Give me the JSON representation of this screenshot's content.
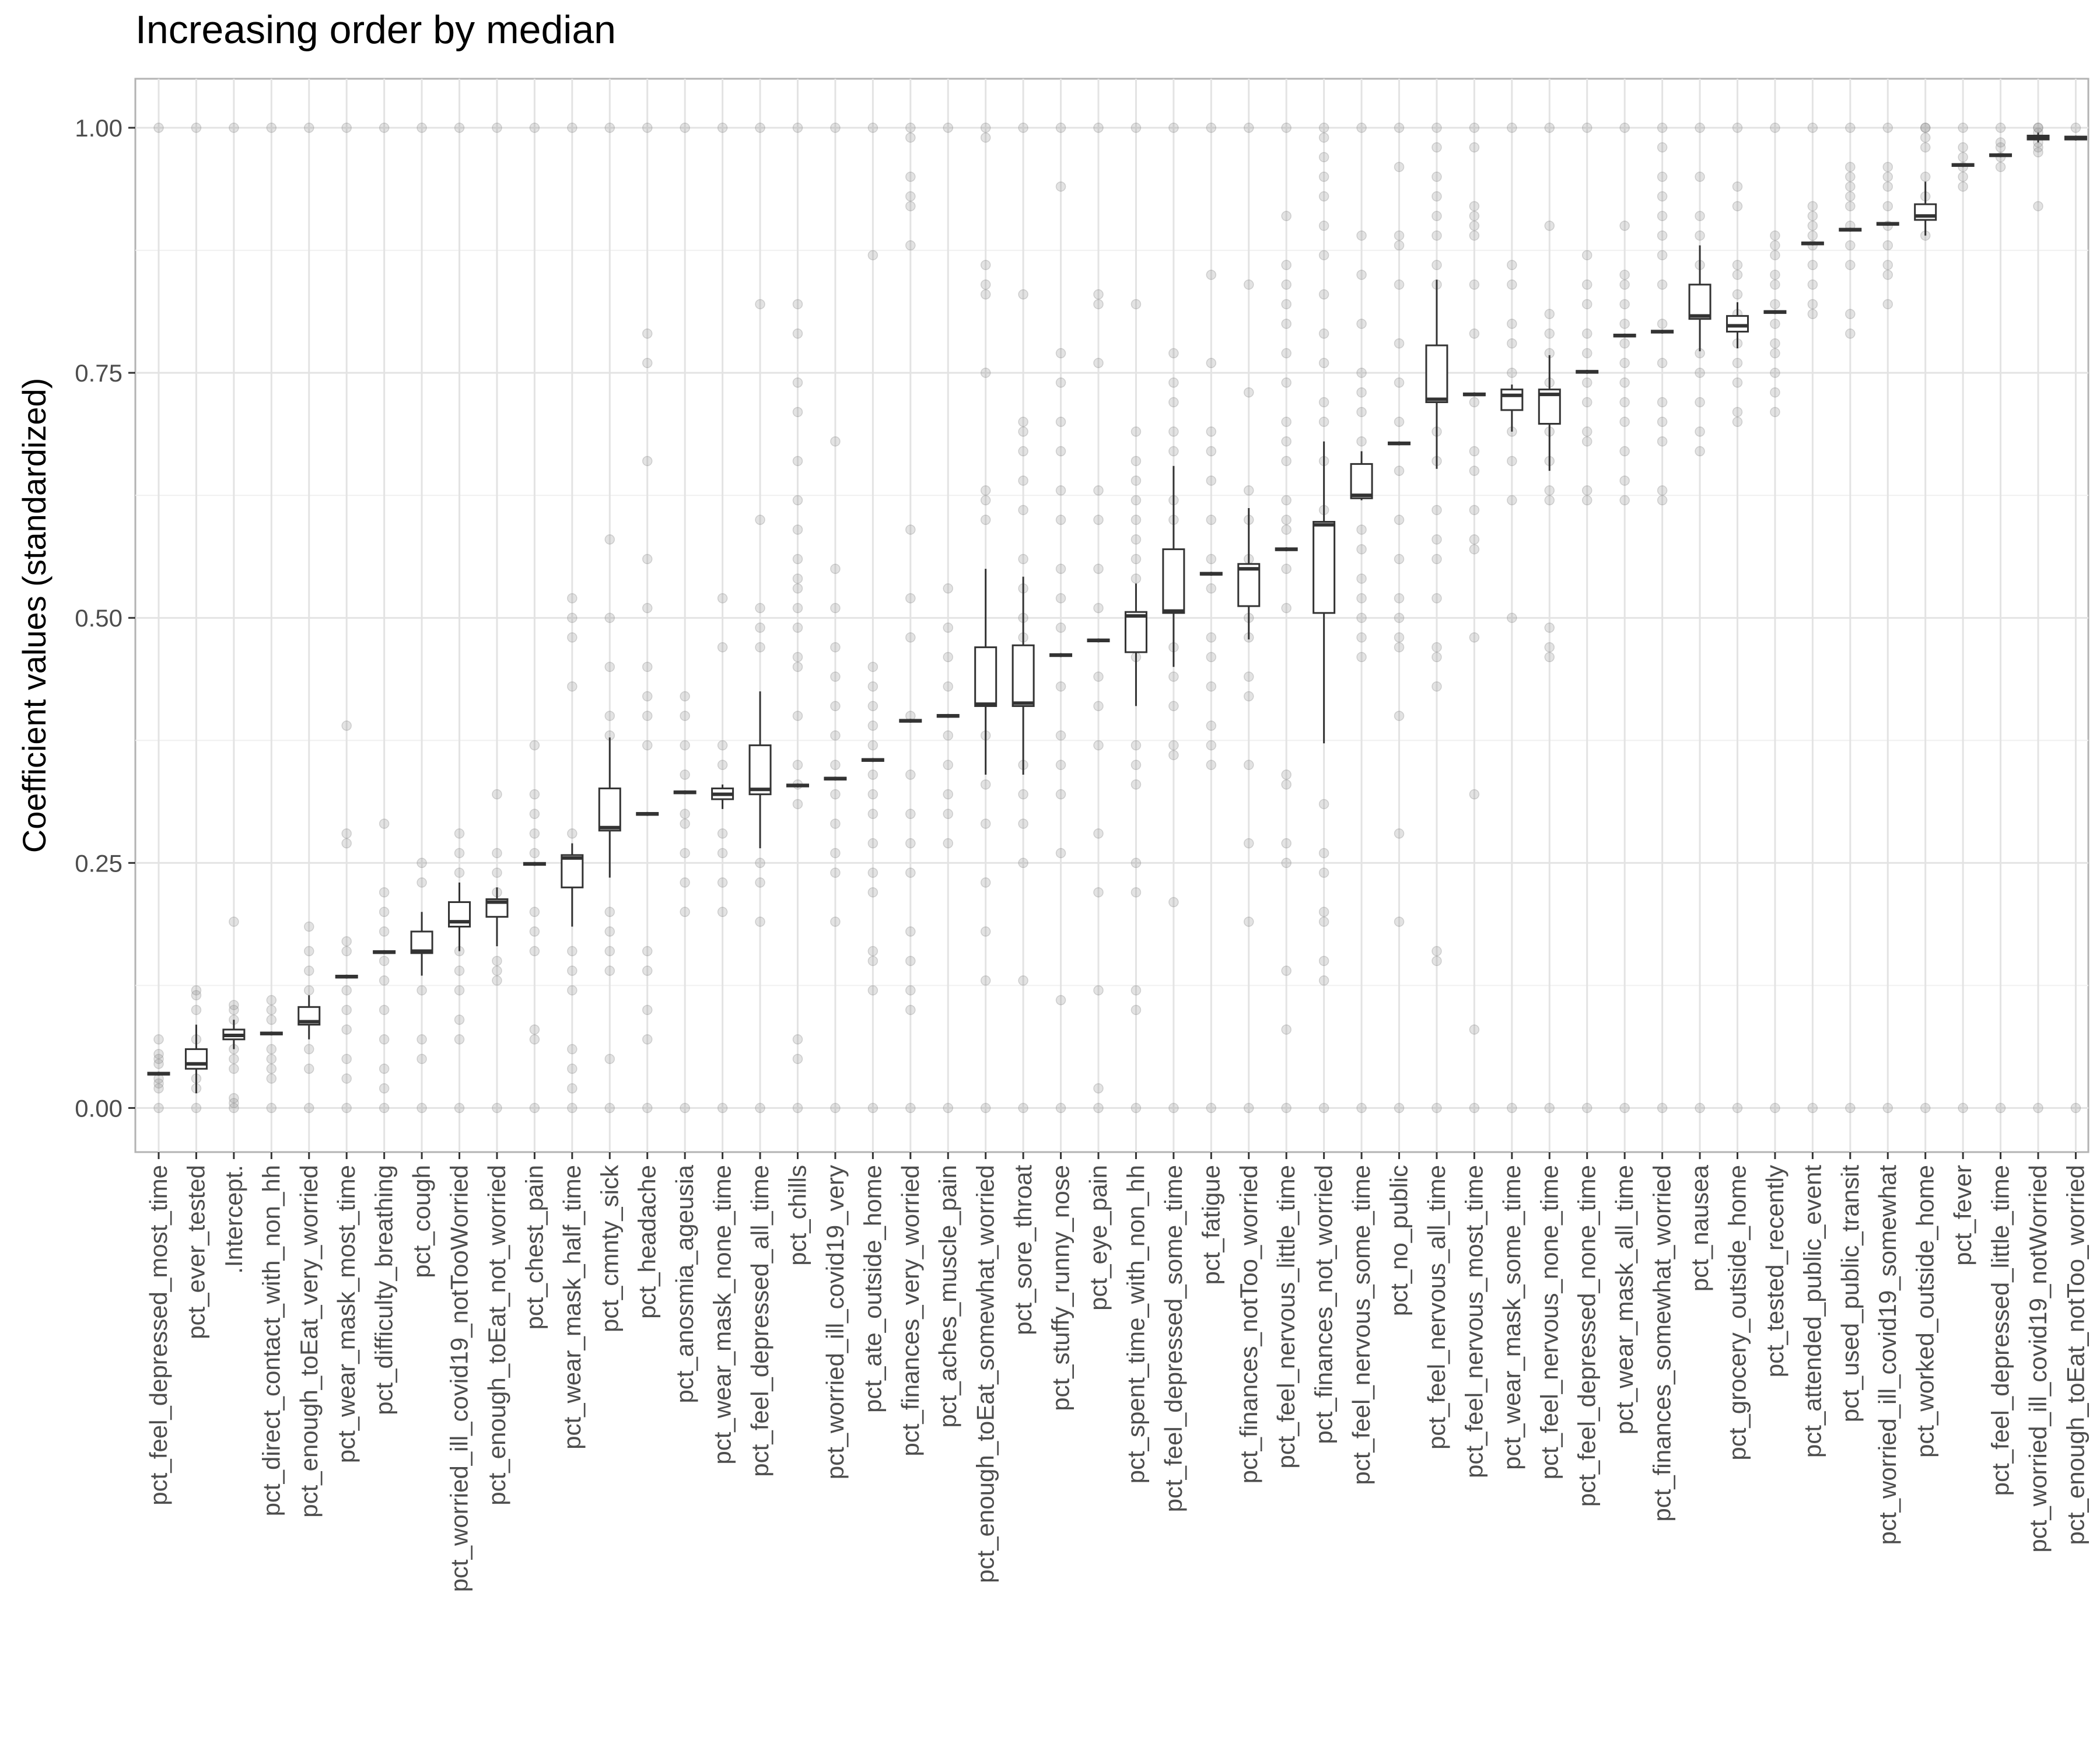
{
  "chart_data": {
    "type": "box",
    "title": "Increasing order by median",
    "xlabel": "",
    "ylabel": "Coefficient values (standardized)",
    "ylim": [
      -0.045,
      1.05
    ],
    "yticks": [
      0.0,
      0.25,
      0.5,
      0.75,
      1.0
    ],
    "ytick_labels": [
      "0.00",
      "0.25",
      "0.50",
      "0.75",
      "1.00"
    ],
    "grid": true,
    "categories": [
      "pct_feel_depressed_most_time",
      "pct_ever_tested",
      ".Intercept.",
      "pct_direct_contact_with_non_hh",
      "pct_enough_toEat_very_worried",
      "pct_wear_mask_most_time",
      "pct_difficulty_breathing",
      "pct_cough",
      "pct_worried_ill_covid19_notTooWorried",
      "pct_enough_toEat_not_worried",
      "pct_chest_pain",
      "pct_wear_mask_half_time",
      "pct_cmnty_sick",
      "pct_headache",
      "pct_anosmia_ageusia",
      "pct_wear_mask_none_time",
      "pct_feel_depressed_all_time",
      "pct_chills",
      "pct_worried_ill_covid19_very",
      "pct_ate_outside_home",
      "pct_finances_very_worried",
      "pct_aches_muscle_pain",
      "pct_enough_toEat_somewhat_worried",
      "pct_sore_throat",
      "pct_stuffy_runny_nose",
      "pct_eye_pain",
      "pct_spent_time_with_non_hh",
      "pct_feel_depressed_some_time",
      "pct_fatigue",
      "pct_finances_notToo_worried",
      "pct_feel_nervous_little_time",
      "pct_finances_not_worried",
      "pct_feel_nervous_some_time",
      "pct_no_public",
      "pct_feel_nervous_all_time",
      "pct_feel_nervous_most_time",
      "pct_wear_mask_some_time",
      "pct_feel_nervous_none_time",
      "pct_feel_depressed_none_time",
      "pct_wear_mask_all_time",
      "pct_finances_somewhat_worried",
      "pct_nausea",
      "pct_grocery_outside_home",
      "pct_tested_recently",
      "pct_attended_public_event",
      "pct_used_public_transit",
      "pct_worried_ill_covid19_somewhat",
      "pct_worked_outside_home",
      "pct_fever",
      "pct_feel_depressed_little_time",
      "pct_worried_ill_covid19_notWorried",
      "pct_enough_toEat_notToo_worried"
    ],
    "boxes": [
      {
        "min": 0.033,
        "q1": 0.034,
        "median": 0.035,
        "q3": 0.036,
        "max": 0.037
      },
      {
        "min": 0.015,
        "q1": 0.04,
        "median": 0.045,
        "q3": 0.06,
        "max": 0.085
      },
      {
        "min": 0.06,
        "q1": 0.07,
        "median": 0.074,
        "q3": 0.08,
        "max": 0.09
      },
      {
        "min": 0.074,
        "q1": 0.075,
        "median": 0.076,
        "q3": 0.077,
        "max": 0.078
      },
      {
        "min": 0.07,
        "q1": 0.085,
        "median": 0.088,
        "q3": 0.103,
        "max": 0.115
      },
      {
        "min": 0.132,
        "q1": 0.133,
        "median": 0.134,
        "q3": 0.135,
        "max": 0.136
      },
      {
        "min": 0.157,
        "q1": 0.158,
        "median": 0.159,
        "q3": 0.16,
        "max": 0.161
      },
      {
        "min": 0.135,
        "q1": 0.158,
        "median": 0.16,
        "q3": 0.18,
        "max": 0.2
      },
      {
        "min": 0.16,
        "q1": 0.185,
        "median": 0.19,
        "q3": 0.21,
        "max": 0.23
      },
      {
        "min": 0.165,
        "q1": 0.195,
        "median": 0.21,
        "q3": 0.213,
        "max": 0.225
      },
      {
        "min": 0.247,
        "q1": 0.248,
        "median": 0.249,
        "q3": 0.25,
        "max": 0.251
      },
      {
        "min": 0.185,
        "q1": 0.225,
        "median": 0.255,
        "q3": 0.258,
        "max": 0.27
      },
      {
        "min": 0.235,
        "q1": 0.283,
        "median": 0.286,
        "q3": 0.326,
        "max": 0.378
      },
      {
        "min": 0.298,
        "q1": 0.299,
        "median": 0.3,
        "q3": 0.301,
        "max": 0.302
      },
      {
        "min": 0.32,
        "q1": 0.321,
        "median": 0.322,
        "q3": 0.323,
        "max": 0.324
      },
      {
        "min": 0.305,
        "q1": 0.315,
        "median": 0.32,
        "q3": 0.326,
        "max": 0.33
      },
      {
        "min": 0.265,
        "q1": 0.32,
        "median": 0.325,
        "q3": 0.37,
        "max": 0.425
      },
      {
        "min": 0.327,
        "q1": 0.328,
        "median": 0.329,
        "q3": 0.33,
        "max": 0.331
      },
      {
        "min": 0.334,
        "q1": 0.335,
        "median": 0.336,
        "q3": 0.337,
        "max": 0.338
      },
      {
        "min": 0.353,
        "q1": 0.354,
        "median": 0.355,
        "q3": 0.356,
        "max": 0.357
      },
      {
        "min": 0.393,
        "q1": 0.394,
        "median": 0.395,
        "q3": 0.396,
        "max": 0.397
      },
      {
        "min": 0.398,
        "q1": 0.399,
        "median": 0.4,
        "q3": 0.401,
        "max": 0.402
      },
      {
        "min": 0.34,
        "q1": 0.41,
        "median": 0.412,
        "q3": 0.47,
        "max": 0.55
      },
      {
        "min": 0.34,
        "q1": 0.41,
        "median": 0.413,
        "q3": 0.472,
        "max": 0.542
      },
      {
        "min": 0.46,
        "q1": 0.461,
        "median": 0.462,
        "q3": 0.463,
        "max": 0.464
      },
      {
        "min": 0.475,
        "q1": 0.476,
        "median": 0.477,
        "q3": 0.478,
        "max": 0.479
      },
      {
        "min": 0.41,
        "q1": 0.465,
        "median": 0.502,
        "q3": 0.506,
        "max": 0.535
      },
      {
        "min": 0.45,
        "q1": 0.505,
        "median": 0.507,
        "q3": 0.57,
        "max": 0.655
      },
      {
        "min": 0.543,
        "q1": 0.544,
        "median": 0.545,
        "q3": 0.546,
        "max": 0.547
      },
      {
        "min": 0.478,
        "q1": 0.512,
        "median": 0.55,
        "q3": 0.555,
        "max": 0.612
      },
      {
        "min": 0.568,
        "q1": 0.569,
        "median": 0.57,
        "q3": 0.571,
        "max": 0.572
      },
      {
        "min": 0.372,
        "q1": 0.505,
        "median": 0.595,
        "q3": 0.598,
        "max": 0.68
      },
      {
        "min": 0.62,
        "q1": 0.622,
        "median": 0.625,
        "q3": 0.657,
        "max": 0.67
      },
      {
        "min": 0.676,
        "q1": 0.677,
        "median": 0.678,
        "q3": 0.679,
        "max": 0.68
      },
      {
        "min": 0.652,
        "q1": 0.72,
        "median": 0.723,
        "q3": 0.778,
        "max": 0.845
      },
      {
        "min": 0.726,
        "q1": 0.727,
        "median": 0.728,
        "q3": 0.729,
        "max": 0.73
      },
      {
        "min": 0.69,
        "q1": 0.712,
        "median": 0.727,
        "q3": 0.733,
        "max": 0.738
      },
      {
        "min": 0.65,
        "q1": 0.698,
        "median": 0.728,
        "q3": 0.733,
        "max": 0.768
      },
      {
        "min": 0.749,
        "q1": 0.75,
        "median": 0.751,
        "q3": 0.752,
        "max": 0.753
      },
      {
        "min": 0.786,
        "q1": 0.787,
        "median": 0.788,
        "q3": 0.789,
        "max": 0.79
      },
      {
        "min": 0.79,
        "q1": 0.791,
        "median": 0.792,
        "q3": 0.793,
        "max": 0.794
      },
      {
        "min": 0.772,
        "q1": 0.805,
        "median": 0.808,
        "q3": 0.84,
        "max": 0.88
      },
      {
        "min": 0.775,
        "q1": 0.792,
        "median": 0.798,
        "q3": 0.808,
        "max": 0.822
      },
      {
        "min": 0.81,
        "q1": 0.811,
        "median": 0.812,
        "q3": 0.813,
        "max": 0.814
      },
      {
        "min": 0.88,
        "q1": 0.881,
        "median": 0.882,
        "q3": 0.883,
        "max": 0.884
      },
      {
        "min": 0.894,
        "q1": 0.895,
        "median": 0.896,
        "q3": 0.897,
        "max": 0.898
      },
      {
        "min": 0.9,
        "q1": 0.901,
        "median": 0.902,
        "q3": 0.903,
        "max": 0.904
      },
      {
        "min": 0.89,
        "q1": 0.906,
        "median": 0.91,
        "q3": 0.922,
        "max": 0.945
      },
      {
        "min": 0.96,
        "q1": 0.961,
        "median": 0.962,
        "q3": 0.963,
        "max": 0.964
      },
      {
        "min": 0.97,
        "q1": 0.971,
        "median": 0.972,
        "q3": 0.973,
        "max": 0.974
      },
      {
        "min": 0.985,
        "q1": 0.988,
        "median": 0.99,
        "q3": 0.992,
        "max": 0.995
      },
      {
        "min": 0.987,
        "q1": 0.988,
        "median": 0.99,
        "q3": 0.991,
        "max": 0.992
      }
    ],
    "points_common": [
      0.0,
      1.0
    ],
    "points": [
      [
        0.02,
        0.025,
        0.03,
        0.045,
        0.05,
        0.055,
        0.07
      ],
      [
        0.02,
        0.03,
        0.07,
        0.1,
        0.115,
        0.12
      ],
      [
        0.005,
        0.01,
        0.04,
        0.05,
        0.06,
        0.09,
        0.1,
        0.105,
        0.19
      ],
      [
        0.03,
        0.04,
        0.05,
        0.06,
        0.09,
        0.1,
        0.11
      ],
      [
        0.04,
        0.06,
        0.12,
        0.14,
        0.16,
        0.185
      ],
      [
        0.03,
        0.05,
        0.08,
        0.1,
        0.12,
        0.16,
        0.17,
        0.27,
        0.28,
        0.39
      ],
      [
        0.02,
        0.04,
        0.07,
        0.1,
        0.13,
        0.15,
        0.18,
        0.2,
        0.22,
        0.29
      ],
      [
        0.05,
        0.07,
        0.12,
        0.23,
        0.25
      ],
      [
        0.07,
        0.09,
        0.12,
        0.14,
        0.16,
        0.24,
        0.26,
        0.28
      ],
      [
        0.13,
        0.14,
        0.15,
        0.22,
        0.24,
        0.26,
        0.32
      ],
      [
        0.07,
        0.08,
        0.16,
        0.18,
        0.2,
        0.26,
        0.28,
        0.3,
        0.32,
        0.37
      ],
      [
        0.02,
        0.04,
        0.06,
        0.12,
        0.14,
        0.16,
        0.28,
        0.43,
        0.48,
        0.5,
        0.52
      ],
      [
        0.05,
        0.14,
        0.16,
        0.18,
        0.2,
        0.38,
        0.4,
        0.45,
        0.5,
        0.58
      ],
      [
        0.07,
        0.1,
        0.14,
        0.16,
        0.37,
        0.4,
        0.42,
        0.45,
        0.51,
        0.56,
        0.66,
        0.76,
        0.79
      ],
      [
        0.2,
        0.23,
        0.26,
        0.29,
        0.3,
        0.34,
        0.37,
        0.4,
        0.42
      ],
      [
        0.2,
        0.23,
        0.26,
        0.28,
        0.32,
        0.35,
        0.37,
        0.47,
        0.52
      ],
      [
        0.19,
        0.23,
        0.25,
        0.35,
        0.47,
        0.49,
        0.51,
        0.6,
        0.82
      ],
      [
        0.05,
        0.07,
        0.31,
        0.33,
        0.35,
        0.4,
        0.45,
        0.46,
        0.49,
        0.51,
        0.53,
        0.54,
        0.56,
        0.59,
        0.62,
        0.66,
        0.71,
        0.74,
        0.79,
        0.82
      ],
      [
        0.19,
        0.24,
        0.26,
        0.29,
        0.32,
        0.35,
        0.38,
        0.41,
        0.44,
        0.47,
        0.51,
        0.55,
        0.68
      ],
      [
        0.12,
        0.15,
        0.16,
        0.22,
        0.24,
        0.27,
        0.3,
        0.32,
        0.34,
        0.37,
        0.39,
        0.41,
        0.43,
        0.45,
        0.87
      ],
      [
        0.1,
        0.12,
        0.15,
        0.18,
        0.24,
        0.27,
        0.3,
        0.34,
        0.4,
        0.48,
        0.52,
        0.59,
        0.88,
        0.92,
        0.93,
        0.95,
        0.99
      ],
      [
        0.27,
        0.3,
        0.32,
        0.35,
        0.38,
        0.43,
        0.46,
        0.49,
        0.53
      ],
      [
        0.13,
        0.18,
        0.23,
        0.29,
        0.33,
        0.38,
        0.6,
        0.62,
        0.63,
        0.75,
        0.83,
        0.84,
        0.86,
        0.99
      ],
      [
        0.13,
        0.25,
        0.29,
        0.32,
        0.35,
        0.48,
        0.5,
        0.53,
        0.56,
        0.61,
        0.64,
        0.67,
        0.69,
        0.7,
        0.83
      ],
      [
        0.11,
        0.26,
        0.32,
        0.35,
        0.38,
        0.43,
        0.49,
        0.52,
        0.55,
        0.6,
        0.63,
        0.67,
        0.7,
        0.74,
        0.77,
        0.94
      ],
      [
        0.02,
        0.12,
        0.22,
        0.28,
        0.37,
        0.41,
        0.44,
        0.51,
        0.55,
        0.6,
        0.63,
        0.76,
        0.82,
        0.83
      ],
      [
        0.1,
        0.12,
        0.22,
        0.25,
        0.33,
        0.35,
        0.37,
        0.46,
        0.54,
        0.56,
        0.58,
        0.6,
        0.62,
        0.64,
        0.66,
        0.69,
        0.82
      ],
      [
        0.21,
        0.36,
        0.37,
        0.41,
        0.44,
        0.47,
        0.52,
        0.6,
        0.62,
        0.67,
        0.69,
        0.72,
        0.74,
        0.77
      ],
      [
        0.35,
        0.37,
        0.39,
        0.43,
        0.46,
        0.48,
        0.53,
        0.56,
        0.6,
        0.64,
        0.67,
        0.69,
        0.76,
        0.85
      ],
      [
        0.19,
        0.27,
        0.35,
        0.42,
        0.44,
        0.48,
        0.5,
        0.53,
        0.56,
        0.6,
        0.63,
        0.73,
        0.84
      ],
      [
        0.08,
        0.14,
        0.25,
        0.27,
        0.33,
        0.34,
        0.51,
        0.55,
        0.59,
        0.6,
        0.62,
        0.66,
        0.68,
        0.7,
        0.74,
        0.77,
        0.8,
        0.82,
        0.84,
        0.86,
        0.91
      ],
      [
        0.13,
        0.15,
        0.19,
        0.2,
        0.24,
        0.26,
        0.31,
        0.52,
        0.61,
        0.66,
        0.7,
        0.72,
        0.76,
        0.79,
        0.83,
        0.87,
        0.9,
        0.93,
        0.95,
        0.97,
        0.99
      ],
      [
        0.46,
        0.48,
        0.5,
        0.52,
        0.54,
        0.57,
        0.59,
        0.65,
        0.68,
        0.71,
        0.73,
        0.75,
        0.8,
        0.85,
        0.89
      ],
      [
        0.19,
        0.28,
        0.4,
        0.47,
        0.48,
        0.5,
        0.52,
        0.56,
        0.6,
        0.65,
        0.7,
        0.74,
        0.78,
        0.84,
        0.88,
        0.89,
        0.96
      ],
      [
        0.15,
        0.16,
        0.43,
        0.46,
        0.47,
        0.52,
        0.56,
        0.58,
        0.61,
        0.66,
        0.69,
        0.84,
        0.86,
        0.89,
        0.91,
        0.93,
        0.95,
        0.98
      ],
      [
        0.08,
        0.32,
        0.48,
        0.57,
        0.58,
        0.61,
        0.65,
        0.67,
        0.72,
        0.79,
        0.84,
        0.89,
        0.9,
        0.91,
        0.92,
        0.98
      ],
      [
        0.5,
        0.62,
        0.66,
        0.69,
        0.72,
        0.75,
        0.78,
        0.8,
        0.84,
        0.86
      ],
      [
        0.46,
        0.47,
        0.49,
        0.62,
        0.63,
        0.66,
        0.69,
        0.72,
        0.74,
        0.77,
        0.79,
        0.81,
        0.9
      ],
      [
        0.62,
        0.63,
        0.68,
        0.69,
        0.72,
        0.74,
        0.77,
        0.79,
        0.82,
        0.84,
        0.87
      ],
      [
        0.62,
        0.64,
        0.67,
        0.7,
        0.72,
        0.74,
        0.76,
        0.78,
        0.8,
        0.82,
        0.84,
        0.85,
        0.9
      ],
      [
        0.62,
        0.63,
        0.68,
        0.7,
        0.72,
        0.76,
        0.8,
        0.84,
        0.87,
        0.89,
        0.91,
        0.93,
        0.95,
        0.98
      ],
      [
        0.67,
        0.69,
        0.72,
        0.75,
        0.77,
        0.86,
        0.89,
        0.91,
        0.95
      ],
      [
        0.7,
        0.71,
        0.74,
        0.76,
        0.78,
        0.81,
        0.83,
        0.85,
        0.86,
        0.92,
        0.94
      ],
      [
        0.71,
        0.73,
        0.75,
        0.77,
        0.78,
        0.8,
        0.82,
        0.84,
        0.85,
        0.87,
        0.88,
        0.89
      ],
      [
        0.81,
        0.82,
        0.84,
        0.86,
        0.88,
        0.89,
        0.9,
        0.91,
        0.92
      ],
      [
        0.79,
        0.81,
        0.86,
        0.88,
        0.9,
        0.92,
        0.93,
        0.94,
        0.95,
        0.96
      ],
      [
        0.82,
        0.85,
        0.86,
        0.88,
        0.9,
        0.92,
        0.94,
        0.95,
        0.96
      ],
      [
        0.89,
        0.91,
        0.93,
        0.95,
        0.98,
        0.99,
        1.0
      ],
      [
        0.94,
        0.95,
        0.96,
        0.97,
        0.98
      ],
      [
        0.96,
        0.97,
        0.98,
        0.985
      ],
      [
        0.92,
        0.975,
        0.98,
        0.985,
        0.995,
        1.0
      ],
      []
    ]
  }
}
